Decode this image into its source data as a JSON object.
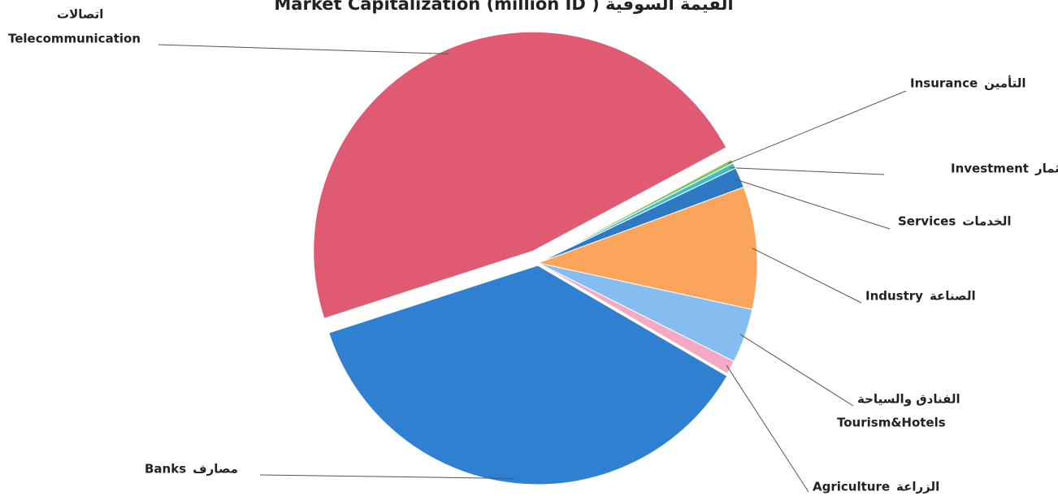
{
  "chart_data": {
    "type": "pie",
    "title": "Market Capitalization (million ID ) القيمة السوقية",
    "categories": [
      "Insurance",
      "Investment",
      "Services",
      "Industry",
      "Tourism&Hotels",
      "Agriculture",
      "Banks",
      "Telecommunication"
    ],
    "categories_ar": [
      "التأمين",
      "الاستثمار",
      "الخدمات",
      "الصناعة",
      "الفنادق والسياحة",
      "الزراعة",
      "مصارف",
      "اتصالات"
    ],
    "values": [
      0.3,
      0.4,
      1.5,
      9,
      4,
      1,
      36.5,
      47
    ],
    "colors": [
      "#8fc36a",
      "#3cc0c8",
      "#2e78c4",
      "#fba55c",
      "#85bdf0",
      "#f5a9c4",
      "#2f80d0",
      "#e05a72"
    ]
  }
}
